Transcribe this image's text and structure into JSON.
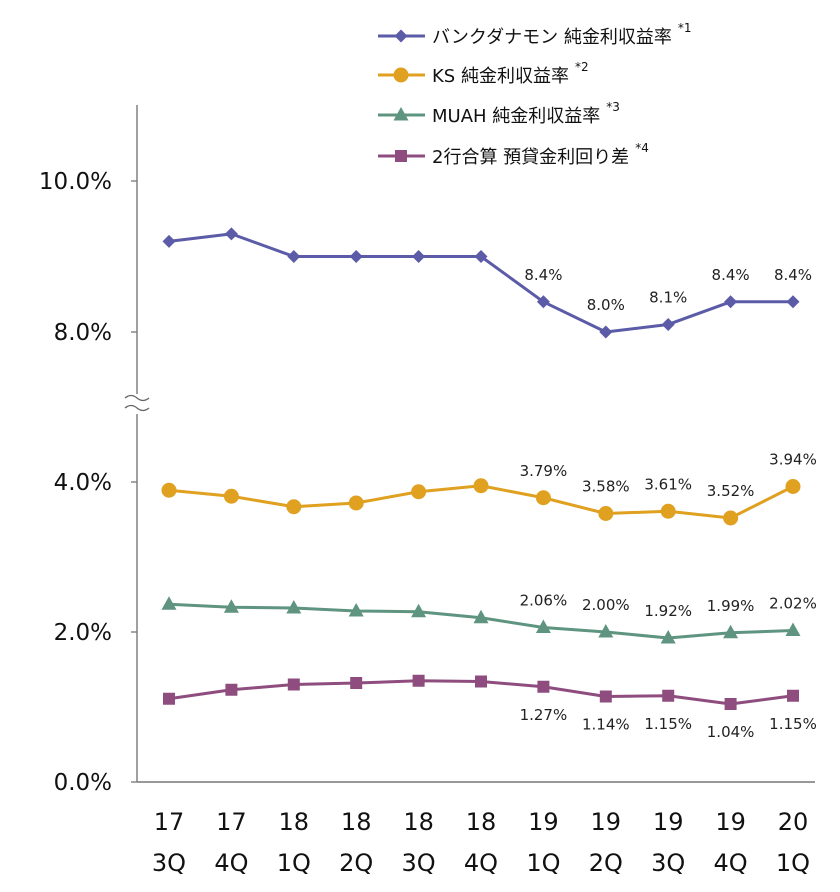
{
  "chart_data": {
    "type": "line",
    "categories": [
      {
        "top": "17",
        "bottom": "3Q"
      },
      {
        "top": "17",
        "bottom": "4Q"
      },
      {
        "top": "18",
        "bottom": "1Q"
      },
      {
        "top": "18",
        "bottom": "2Q"
      },
      {
        "top": "18",
        "bottom": "3Q"
      },
      {
        "top": "18",
        "bottom": "4Q"
      },
      {
        "top": "19",
        "bottom": "1Q"
      },
      {
        "top": "19",
        "bottom": "2Q"
      },
      {
        "top": "19",
        "bottom": "3Q"
      },
      {
        "top": "19",
        "bottom": "4Q"
      },
      {
        "top": "20",
        "bottom": "1Q"
      }
    ],
    "y_ticks": [
      {
        "value": 10.0,
        "label": "10.0%"
      },
      {
        "value": 8.0,
        "label": "8.0%"
      },
      {
        "value": 4.0,
        "label": "4.0%"
      },
      {
        "value": 2.0,
        "label": "2.0%"
      },
      {
        "value": 0.0,
        "label": "0.0%"
      }
    ],
    "axis_break": {
      "lower_max": 5.0,
      "upper_min": 7.0
    },
    "ylim": [
      0,
      10.8
    ],
    "legend_position": "top",
    "series": [
      {
        "name": "バンクダナモン 純金利収益率",
        "note": "*1",
        "color": "#5b5ba8",
        "marker": "diamond",
        "values": [
          9.2,
          9.3,
          9.0,
          9.0,
          9.0,
          9.0,
          8.4,
          8.0,
          8.1,
          8.4,
          8.4
        ],
        "labels": [
          "",
          "",
          "",
          "",
          "",
          "",
          "8.4%",
          "8.0%",
          "8.1%",
          "8.4%",
          "8.4%"
        ],
        "label_pos": "above"
      },
      {
        "name": "KS 純金利収益率",
        "note": "*2",
        "color": "#e0a020",
        "marker": "circle",
        "values": [
          3.89,
          3.81,
          3.67,
          3.72,
          3.87,
          3.95,
          3.79,
          3.58,
          3.61,
          3.52,
          3.94
        ],
        "labels": [
          "",
          "",
          "",
          "",
          "",
          "",
          "3.79%",
          "3.58%",
          "3.61%",
          "3.52%",
          "3.94%"
        ],
        "label_pos": "above"
      },
      {
        "name": "MUAH 純金利収益率",
        "note": "*3",
        "color": "#5f9480",
        "marker": "triangle",
        "values": [
          2.37,
          2.33,
          2.32,
          2.28,
          2.27,
          2.19,
          2.06,
          2.0,
          1.92,
          1.99,
          2.02
        ],
        "labels": [
          "",
          "",
          "",
          "",
          "",
          "",
          "2.06%",
          "2.00%",
          "1.92%",
          "1.99%",
          "2.02%"
        ],
        "label_pos": "above"
      },
      {
        "name": "2行合算 預貸金利回り差",
        "note": "*4",
        "color": "#8e4d7e",
        "marker": "square",
        "values": [
          1.11,
          1.23,
          1.3,
          1.32,
          1.35,
          1.34,
          1.27,
          1.14,
          1.15,
          1.04,
          1.15
        ],
        "labels": [
          "",
          "",
          "",
          "",
          "",
          "",
          "1.27%",
          "1.14%",
          "1.15%",
          "1.04%",
          "1.15%"
        ],
        "label_pos": "below"
      }
    ]
  }
}
